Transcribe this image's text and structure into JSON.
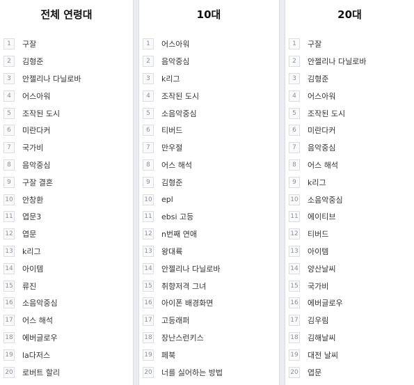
{
  "columns": [
    {
      "title": "전체 연령대",
      "items": [
        "구잘",
        "김형준",
        "안젤리나 다닐로바",
        "어스아워",
        "조작된 도시",
        "미란다커",
        "국가비",
        "음악중심",
        "구잘 결혼",
        "안창환",
        "엽문3",
        "엽문",
        "k리그",
        "아이템",
        "류진",
        "소음악중심",
        "어스 해석",
        "에버글로우",
        "la다저스",
        "로버트 할리"
      ]
    },
    {
      "title": "10대",
      "items": [
        "어스아워",
        "음악중심",
        "k리그",
        "조작된 도시",
        "소음악중심",
        "티버드",
        "만우절",
        "어스 해석",
        "김형준",
        "epl",
        "ebsi 고등",
        "n번째 연애",
        "왕대륙",
        "안젤리나 다닐로바",
        "취향저격 그녀",
        "아이폰 배경화면",
        "고등래퍼",
        "장난스런키스",
        "페북",
        "너를 싫어하는 방법"
      ]
    },
    {
      "title": "20대",
      "items": [
        "구잘",
        "안젤리나 다닐로바",
        "김형준",
        "어스아워",
        "조작된 도시",
        "미란다커",
        "음악중심",
        "어스 해석",
        "k리그",
        "소음악중심",
        "에이티브",
        "티버드",
        "아이템",
        "양산날씨",
        "국가비",
        "에버글로우",
        "김우림",
        "김해날씨",
        "대전 날씨",
        "엽문"
      ]
    }
  ]
}
